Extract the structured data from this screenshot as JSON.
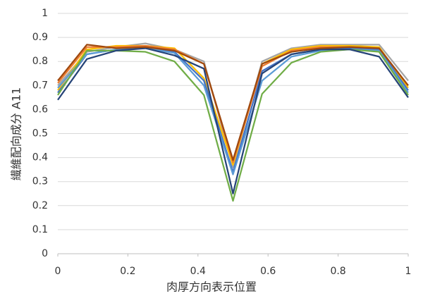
{
  "chart_data": {
    "type": "line",
    "x_label": "肉厚方向表示位置",
    "y_label": "繊維配向成分 A11",
    "x": [
      0,
      0.083,
      0.167,
      0.25,
      0.333,
      0.417,
      0.5,
      0.583,
      0.667,
      0.75,
      0.833,
      0.917,
      1
    ],
    "series": [
      {
        "color": "#a5a5a5",
        "values": [
          0.7,
          0.84,
          0.86,
          0.875,
          0.85,
          0.8,
          0.36,
          0.8,
          0.855,
          0.87,
          0.87,
          0.87,
          0.72
        ]
      },
      {
        "color": "#ffc000",
        "values": [
          0.68,
          0.85,
          0.865,
          0.865,
          0.855,
          0.73,
          0.37,
          0.79,
          0.85,
          0.865,
          0.865,
          0.86,
          0.69
        ]
      },
      {
        "color": "#4472c4",
        "values": [
          0.67,
          0.83,
          0.85,
          0.86,
          0.84,
          0.72,
          0.34,
          0.76,
          0.83,
          0.85,
          0.855,
          0.85,
          0.68
        ]
      },
      {
        "color": "#5b9bd5",
        "values": [
          0.69,
          0.83,
          0.85,
          0.855,
          0.835,
          0.7,
          0.33,
          0.72,
          0.82,
          0.845,
          0.85,
          0.845,
          0.67
        ]
      },
      {
        "color": "#70ad47",
        "values": [
          0.66,
          0.845,
          0.845,
          0.84,
          0.8,
          0.66,
          0.22,
          0.665,
          0.795,
          0.84,
          0.85,
          0.84,
          0.66
        ]
      },
      {
        "color": "#ed7d31",
        "values": [
          0.71,
          0.86,
          0.86,
          0.865,
          0.85,
          0.79,
          0.38,
          0.78,
          0.845,
          0.86,
          0.86,
          0.855,
          0.7
        ]
      },
      {
        "color": "#264478",
        "values": [
          0.64,
          0.81,
          0.845,
          0.855,
          0.825,
          0.77,
          0.25,
          0.75,
          0.83,
          0.85,
          0.85,
          0.82,
          0.65
        ]
      },
      {
        "color": "#9e480e",
        "values": [
          0.72,
          0.87,
          0.855,
          0.86,
          0.845,
          0.79,
          0.39,
          0.79,
          0.84,
          0.855,
          0.86,
          0.855,
          0.7
        ]
      }
    ],
    "xlim": [
      0,
      1
    ],
    "xticks": [
      0,
      0.2,
      0.4,
      0.6,
      0.8,
      1
    ],
    "ylim": [
      0,
      1
    ],
    "yticks": [
      0,
      0.1,
      0.2,
      0.3,
      0.4,
      0.5,
      0.6,
      0.7,
      0.8,
      0.9,
      1
    ],
    "grid": true
  }
}
